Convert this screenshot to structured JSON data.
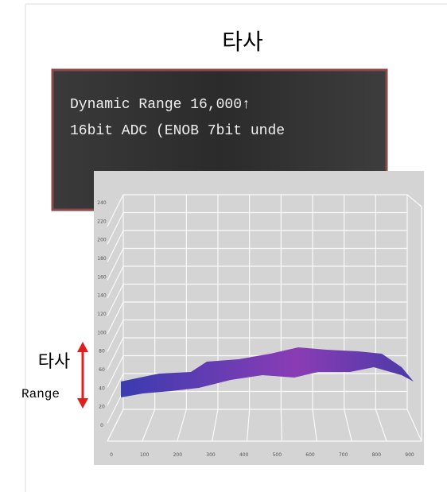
{
  "title": "타사",
  "box": {
    "lines": [
      "Dynamic Range 16,000↑",
      "16bit ADC (ENOB 7bit unde"
    ]
  },
  "figure": {
    "y_labels": [
      "0",
      "20",
      "40",
      "60",
      "80",
      "100",
      "120",
      "140",
      "160",
      "180",
      "200",
      "220",
      "240"
    ],
    "x_labels": [
      "0",
      "100",
      "200",
      "300",
      "400",
      "500",
      "600",
      "700",
      "800",
      "900"
    ]
  },
  "side": {
    "label": "타사",
    "sub": "Range"
  }
}
